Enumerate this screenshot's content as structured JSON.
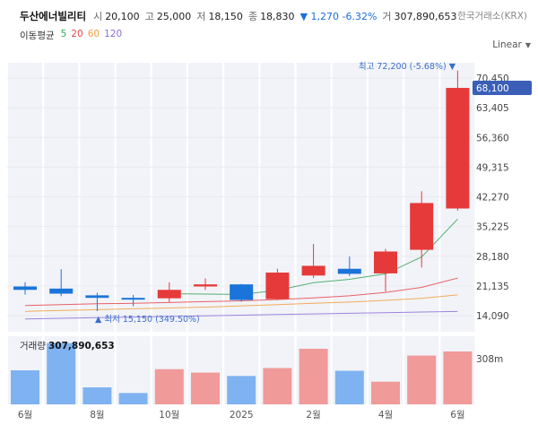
{
  "header": {
    "name": "두산에너빌리티",
    "open_label": "시",
    "open": "20,100",
    "high_label": "고",
    "high": "25,000",
    "low_label": "저",
    "low": "18,150",
    "close_label": "종",
    "close": "18,830",
    "change": "▼ 1,270 -6.32%",
    "volume_label": "거",
    "volume": "307,890,653",
    "exchange": "한국거래소(KRX)"
  },
  "ma": {
    "title": "이동평균",
    "periods": [
      {
        "label": "5",
        "color": "#3aa55a"
      },
      {
        "label": "20",
        "color": "#e5484d"
      },
      {
        "label": "60",
        "color": "#f0a040"
      },
      {
        "label": "120",
        "color": "#8e6fd8"
      }
    ]
  },
  "scale": {
    "label": "Linear",
    "icon": "chevron-down-icon"
  },
  "colors": {
    "up": "#e63a3a",
    "down": "#1a74d9",
    "vol_up": "#f09a9a",
    "vol_down": "#7fb2f0",
    "band": "#f1f3f8"
  },
  "chart_data": {
    "type": "candlestick",
    "interval": "monthly",
    "price_axis": {
      "ticks": [
        14090,
        21135,
        28180,
        35225,
        42270,
        49315,
        56360,
        63405,
        70450
      ],
      "tick_labels": [
        "14,090",
        "21,135",
        "28,180",
        "35,225",
        "42,270",
        "49,315",
        "56,360",
        "63,405",
        "70,450"
      ],
      "current_price_label": "68,100",
      "current_price": 68100
    },
    "max_annotation": {
      "text": "최고 72,200 (-5.68%) ▼",
      "value": 72200
    },
    "min_annotation": {
      "text": "▲ 최저 15,150 (349.50%)",
      "value": 15150
    },
    "candles": [
      {
        "open": 21000,
        "high": 22000,
        "low": 19100,
        "close": 20200,
        "direction": "down"
      },
      {
        "open": 20500,
        "high": 25100,
        "low": 18700,
        "close": 19300,
        "direction": "down"
      },
      {
        "open": 18900,
        "high": 19500,
        "low": 15150,
        "close": 18300,
        "direction": "down"
      },
      {
        "open": 18300,
        "high": 19000,
        "low": 16300,
        "close": 17900,
        "direction": "down"
      },
      {
        "open": 18200,
        "high": 22000,
        "low": 17300,
        "close": 20200,
        "direction": "up"
      },
      {
        "open": 21000,
        "high": 22900,
        "low": 20200,
        "close": 21500,
        "direction": "up"
      },
      {
        "open": 21500,
        "high": 21600,
        "low": 17400,
        "close": 17800,
        "direction": "down"
      },
      {
        "open": 18000,
        "high": 25200,
        "low": 17800,
        "close": 24300,
        "direction": "up"
      },
      {
        "open": 23600,
        "high": 31100,
        "low": 23000,
        "close": 25900,
        "direction": "up"
      },
      {
        "open": 25200,
        "high": 28100,
        "low": 23500,
        "close": 24000,
        "direction": "down"
      },
      {
        "open": 24100,
        "high": 29900,
        "low": 19800,
        "close": 29300,
        "direction": "up"
      },
      {
        "open": 29700,
        "high": 43600,
        "low": 25500,
        "close": 40800,
        "direction": "up"
      },
      {
        "open": 39500,
        "high": 72200,
        "low": 39000,
        "close": 68100,
        "direction": "up"
      }
    ],
    "ma_lines": [
      {
        "period": "5",
        "color": "#3aa55a",
        "values": [
          null,
          null,
          null,
          null,
          19300,
          19200,
          19100,
          20100,
          21900,
          22700,
          24000,
          28000,
          37000
        ]
      },
      {
        "period": "20",
        "color": "#e5484d",
        "values": [
          16500,
          16700,
          16900,
          17000,
          17200,
          17400,
          17600,
          17900,
          18300,
          18800,
          19600,
          20800,
          23000
        ]
      },
      {
        "period": "60",
        "color": "#f0a040",
        "values": [
          15100,
          15300,
          15500,
          15700,
          15900,
          16100,
          16400,
          16700,
          17000,
          17300,
          17700,
          18200,
          19000
        ]
      },
      {
        "period": "120",
        "color": "#8e6fd8",
        "values": [
          13300,
          13450,
          13600,
          13750,
          13900,
          14050,
          14200,
          14350,
          14500,
          14650,
          14800,
          14950,
          15100
        ]
      }
    ],
    "volume": {
      "label": "거래량",
      "value_text": "307,890,653",
      "axis_label": "308m",
      "axis_value": 308,
      "unit": "m",
      "values": [
        150,
        270,
        75,
        50,
        155,
        140,
        125,
        160,
        245,
        148,
        100,
        215,
        233
      ]
    },
    "x_axis": {
      "labels": [
        "6월",
        "8월",
        "10월",
        "2025",
        "2월",
        "4월",
        "6월"
      ],
      "candle_index": [
        0,
        2,
        4,
        6,
        8,
        10,
        12
      ]
    }
  }
}
